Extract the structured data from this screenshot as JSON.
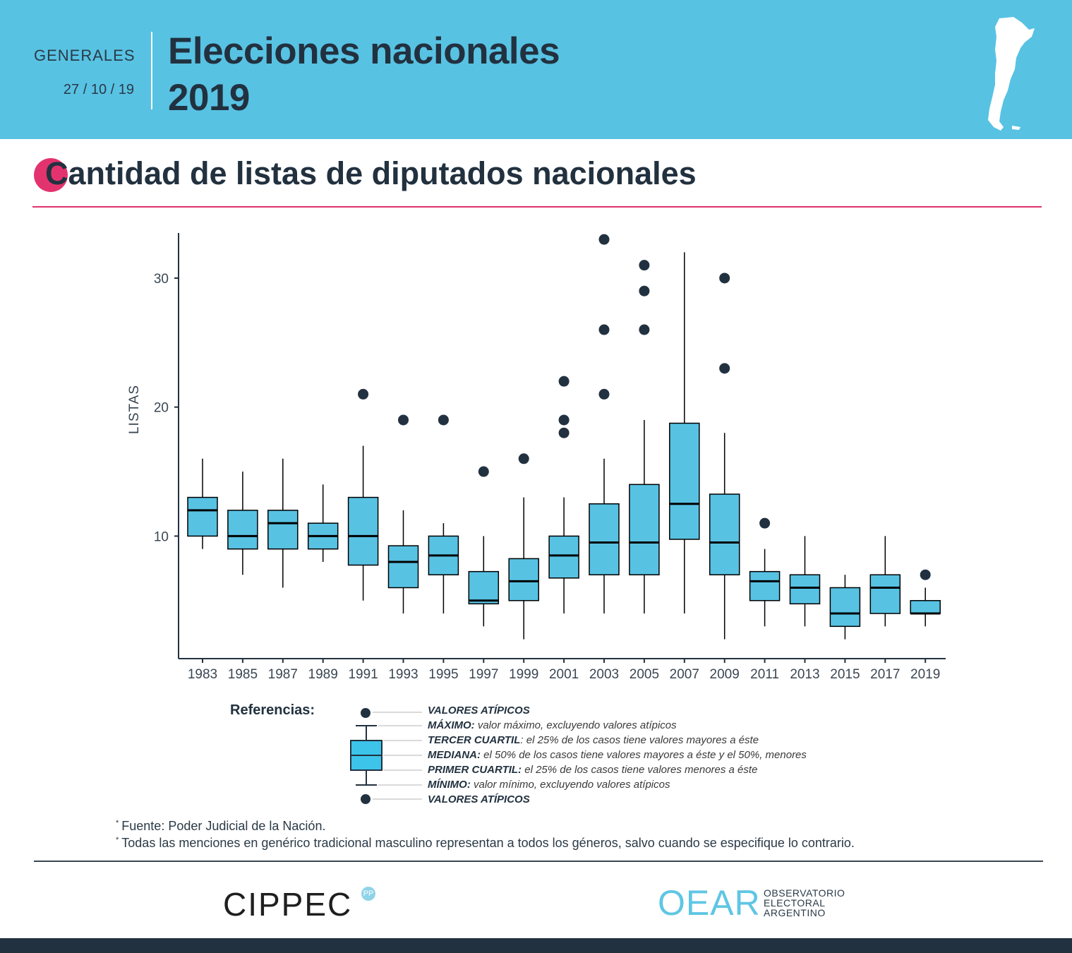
{
  "header": {
    "kicker": "GENERALES",
    "date": "27 / 10 / 19",
    "title_line1": "Elecciones nacionales",
    "title_line2": "2019",
    "map_icon": "argentina-map-icon"
  },
  "chart_title": "Cantidad de listas de diputados nacionales",
  "colors": {
    "header_bg": "#58c2e3",
    "accent": "#e3336e",
    "box_fill": "#58c2e3",
    "dark": "#22313f"
  },
  "chart_data": {
    "type": "boxplot",
    "title": "Cantidad de listas de diputados nacionales",
    "xlabel": "",
    "ylabel": "LISTAS",
    "ylim": [
      0.5,
      33.5
    ],
    "yticks": [
      10,
      20,
      30
    ],
    "categories": [
      "1983",
      "1985",
      "1987",
      "1989",
      "1991",
      "1993",
      "1995",
      "1997",
      "1999",
      "2001",
      "2003",
      "2005",
      "2007",
      "2009",
      "2011",
      "2013",
      "2015",
      "2017",
      "2019"
    ],
    "boxes": [
      {
        "year": "1983",
        "min": 9,
        "q1": 10,
        "median": 12,
        "q3": 13,
        "max": 16,
        "outliers": []
      },
      {
        "year": "1985",
        "min": 7,
        "q1": 9,
        "median": 10,
        "q3": 12,
        "max": 15,
        "outliers": []
      },
      {
        "year": "1987",
        "min": 6,
        "q1": 9,
        "median": 11,
        "q3": 12,
        "max": 16,
        "outliers": []
      },
      {
        "year": "1989",
        "min": 8,
        "q1": 9,
        "median": 10,
        "q3": 11,
        "max": 14,
        "outliers": []
      },
      {
        "year": "1991",
        "min": 5,
        "q1": 7.75,
        "median": 10,
        "q3": 13,
        "max": 17,
        "outliers": [
          21
        ]
      },
      {
        "year": "1993",
        "min": 4,
        "q1": 6,
        "median": 8,
        "q3": 9.25,
        "max": 12,
        "outliers": [
          19
        ]
      },
      {
        "year": "1995",
        "min": 4,
        "q1": 7,
        "median": 8.5,
        "q3": 10,
        "max": 11,
        "outliers": [
          19
        ]
      },
      {
        "year": "1997",
        "min": 3,
        "q1": 4.75,
        "median": 5,
        "q3": 7.25,
        "max": 10,
        "outliers": [
          15
        ]
      },
      {
        "year": "1999",
        "min": 2,
        "q1": 5,
        "median": 6.5,
        "q3": 8.25,
        "max": 13,
        "outliers": [
          16
        ]
      },
      {
        "year": "2001",
        "min": 4,
        "q1": 6.75,
        "median": 8.5,
        "q3": 10,
        "max": 13,
        "outliers": [
          18,
          19,
          22
        ]
      },
      {
        "year": "2003",
        "min": 4,
        "q1": 7,
        "median": 9.5,
        "q3": 12.5,
        "max": 16,
        "outliers": [
          21,
          26,
          33
        ]
      },
      {
        "year": "2005",
        "min": 4,
        "q1": 7,
        "median": 9.5,
        "q3": 14,
        "max": 19,
        "outliers": [
          26,
          29,
          31
        ]
      },
      {
        "year": "2007",
        "min": 4,
        "q1": 9.75,
        "median": 12.5,
        "q3": 18.75,
        "max": 32,
        "outliers": []
      },
      {
        "year": "2009",
        "min": 2,
        "q1": 7,
        "median": 9.5,
        "q3": 13.25,
        "max": 18,
        "outliers": [
          23,
          30
        ]
      },
      {
        "year": "2011",
        "min": 3,
        "q1": 5,
        "median": 6.5,
        "q3": 7.25,
        "max": 9,
        "outliers": [
          11
        ]
      },
      {
        "year": "2013",
        "min": 3,
        "q1": 4.75,
        "median": 6,
        "q3": 7,
        "max": 10,
        "outliers": []
      },
      {
        "year": "2015",
        "min": 2,
        "q1": 3,
        "median": 4,
        "q3": 6,
        "max": 7,
        "outliers": []
      },
      {
        "year": "2017",
        "min": 3,
        "q1": 4,
        "median": 6,
        "q3": 7,
        "max": 10,
        "outliers": []
      },
      {
        "year": "2019",
        "min": 3,
        "q1": 4,
        "median": 4,
        "q3": 5,
        "max": 6,
        "outliers": [
          7
        ]
      }
    ]
  },
  "legend": {
    "heading": "Referencias:",
    "items": [
      {
        "term": "VALORES ATÍPICOS",
        "desc": ""
      },
      {
        "term": "MÁXIMO:",
        "desc": " valor máximo, excluyendo valores atípicos"
      },
      {
        "term": "TERCER CUARTIL",
        "desc": ": el 25% de los casos tiene valores mayores a éste"
      },
      {
        "term": "MEDIANA:",
        "desc": " el 50% de los casos tiene valores mayores a éste y el 50%, menores"
      },
      {
        "term": "PRIMER CUARTIL:",
        "desc": " el 25% de los casos tiene valores menores a éste"
      },
      {
        "term": "MÍNIMO:",
        "desc": " valor mínimo, excluyendo valores atípicos"
      },
      {
        "term": "VALORES ATÍPICOS",
        "desc": ""
      }
    ]
  },
  "notes": [
    "Fuente: Poder Judicial de la Nación.",
    "Todas las menciones en genérico tradicional masculino representan a todos los géneros, salvo cuando se especifique lo contrario."
  ],
  "note_marker": "*",
  "footer": {
    "cippec": "CIPPEC",
    "cippec_badge": "PP",
    "oear": "OEAR",
    "oear_line1": "OBSERVATORIO",
    "oear_line2": "ELECTORAL",
    "oear_line3": "ARGENTINO"
  }
}
